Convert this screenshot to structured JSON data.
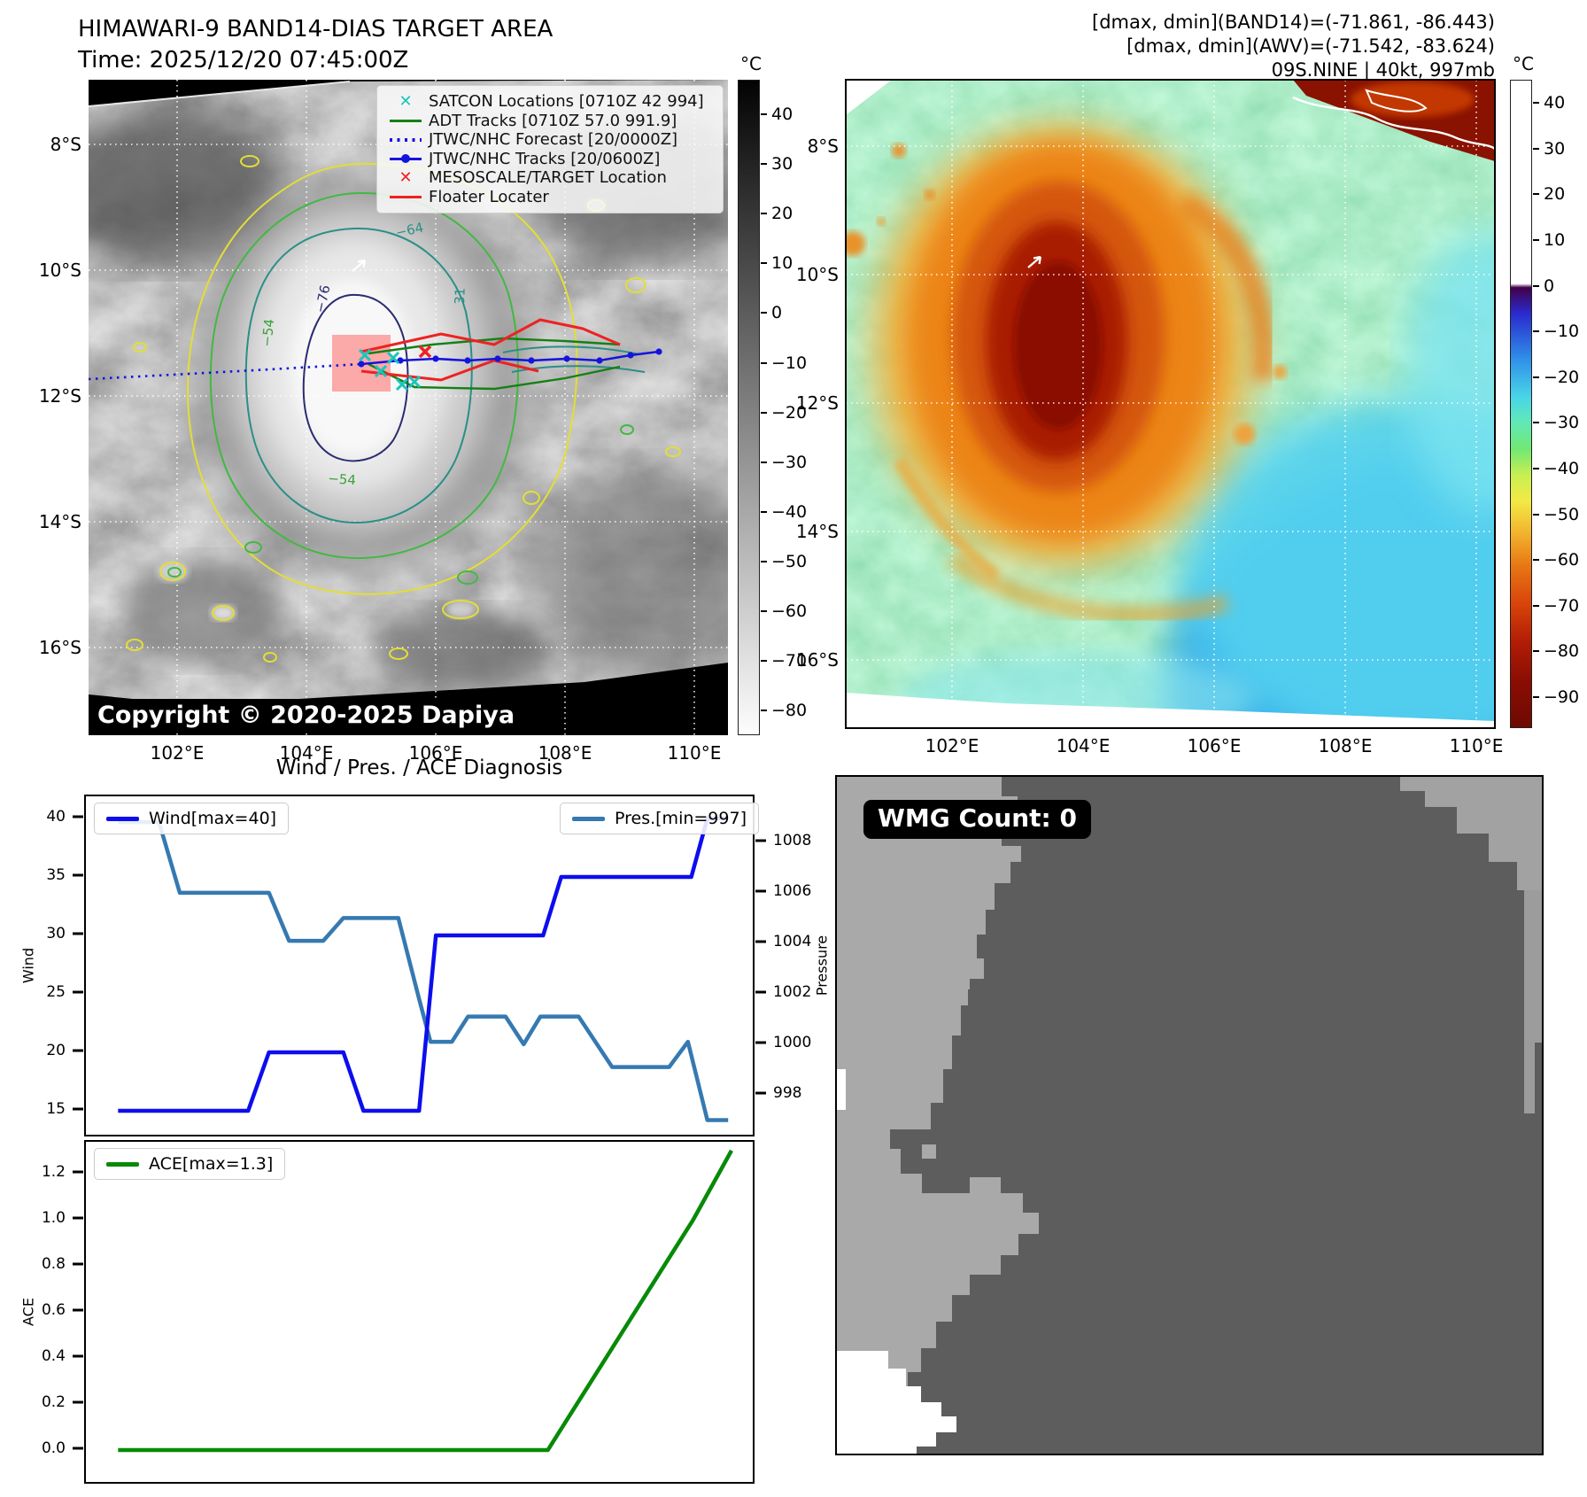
{
  "left_panel": {
    "title_line1": "HIMAWARI-9 BAND14-DIAS TARGET AREA",
    "title_line2": "Time: 2025/12/20 07:45:00Z",
    "copyright": "Copyright © 2020-2025 Dapiya",
    "legend": [
      {
        "label": "SATCON Locations [0710Z 42 994]",
        "symbol": "x-marker",
        "color": "#18c5bd"
      },
      {
        "label": "ADT Tracks [0710Z 57.0 991.9]",
        "symbol": "line",
        "color": "#158015"
      },
      {
        "label": "JTWC/NHC Forecast [20/0000Z]",
        "symbol": "dotted-line",
        "color": "#1414dd"
      },
      {
        "label": "JTWC/NHC Tracks [20/0600Z]",
        "symbol": "line-with-dot",
        "color": "#1414dd"
      },
      {
        "label": "MESOSCALE/TARGET Location",
        "symbol": "x-marker",
        "color": "#ee2222"
      },
      {
        "label": "Floater Locater",
        "symbol": "line",
        "color": "#ee2222"
      }
    ],
    "contour_labels": [
      "−76",
      "−64",
      "−54",
      "31",
      "−54"
    ],
    "xtick_labels": [
      "102°E",
      "104°E",
      "106°E",
      "108°E",
      "110°E"
    ],
    "ytick_labels": [
      "8°S",
      "10°S",
      "12°S",
      "14°S",
      "16°S"
    ],
    "colorbar": {
      "unit": "°C",
      "ticks": [
        40,
        30,
        20,
        10,
        0,
        -10,
        -20,
        -30,
        -40,
        -50,
        -60,
        -70,
        -80
      ],
      "tick_labels": [
        "40",
        "30",
        "20",
        "10",
        "0",
        "−10",
        "−20",
        "−30",
        "−40",
        "−50",
        "−60",
        "−70",
        "−80"
      ],
      "range": [
        -85,
        47
      ]
    }
  },
  "right_panel": {
    "header_line1": "[dmax, dmin](BAND14)=(-71.861, -86.443)",
    "header_line2": "[dmax, dmin](AWV)=(-71.542, -83.624)",
    "header_line3": "09S.NINE | 40kt, 997mb",
    "xtick_labels": [
      "102°E",
      "104°E",
      "106°E",
      "108°E",
      "110°E"
    ],
    "ytick_labels": [
      "8°S",
      "10°S",
      "12°S",
      "14°S",
      "16°S"
    ],
    "colorbar": {
      "unit": "°C",
      "ticks": [
        40,
        30,
        20,
        10,
        0,
        -10,
        -20,
        -30,
        -40,
        -50,
        -60,
        -70,
        -80,
        -90
      ],
      "tick_labels": [
        "40",
        "30",
        "20",
        "10",
        "0",
        "−10",
        "−20",
        "−30",
        "−40",
        "−50",
        "−60",
        "−70",
        "−80",
        "−90"
      ],
      "range": [
        -96.8,
        45.1
      ]
    }
  },
  "wmg_panel": {
    "label": "WMG Count: 0"
  },
  "charts_title": "Wind / Pres. / ACE Diagnosis",
  "chart_data": [
    {
      "type": "line",
      "title": "Wind / Pres. / ACE Diagnosis",
      "x": {
        "note": "normalized time, no x tick labels shown",
        "range": [
          0,
          1
        ]
      },
      "axes": {
        "wind": {
          "label": "Wind",
          "side": "left",
          "ticks": [
            40,
            35,
            30,
            25,
            20,
            15
          ],
          "tick_labels": [
            "40",
            "35",
            "30",
            "25",
            "20",
            "15"
          ],
          "range": [
            12.65,
            41.89
          ]
        },
        "pressure": {
          "label": "Pressure",
          "side": "right",
          "ticks": [
            1008,
            1006,
            1004,
            1002,
            1000,
            998
          ],
          "tick_labels": [
            "1008",
            "1006",
            "1004",
            "1002",
            "1000",
            "998"
          ],
          "range": [
            996.28,
            1009.82
          ]
        }
      },
      "series": [
        {
          "name": "Wind[max=40]",
          "color": "#0d0dee",
          "axis": "wind",
          "points": [
            [
              0.048,
              15
            ],
            [
              0.242,
              15
            ],
            [
              0.273,
              20
            ],
            [
              0.384,
              20
            ],
            [
              0.414,
              15
            ],
            [
              0.497,
              15
            ],
            [
              0.522,
              30
            ],
            [
              0.682,
              30
            ],
            [
              0.709,
              35
            ],
            [
              0.903,
              35
            ],
            [
              0.927,
              40
            ],
            [
              0.958,
              40
            ]
          ]
        },
        {
          "name": "Pres.[min=997]",
          "color": "#3579b1",
          "axis": "pressure",
          "points": [
            [
              0.048,
              1008.8
            ],
            [
              0.109,
              1008.8
            ],
            [
              0.14,
              1006
            ],
            [
              0.273,
              1006
            ],
            [
              0.303,
              1004.1
            ],
            [
              0.354,
              1004.1
            ],
            [
              0.384,
              1005
            ],
            [
              0.466,
              1005
            ],
            [
              0.497,
              1001.8
            ],
            [
              0.514,
              1000.1
            ],
            [
              0.546,
              1000.1
            ],
            [
              0.57,
              1001.1
            ],
            [
              0.626,
              1001.1
            ],
            [
              0.653,
              1000
            ],
            [
              0.678,
              1001.1
            ],
            [
              0.735,
              1001.1
            ],
            [
              0.785,
              999.1
            ],
            [
              0.87,
              999.1
            ],
            [
              0.898,
              1000.1
            ],
            [
              0.927,
              997
            ],
            [
              0.958,
              997
            ]
          ]
        }
      ]
    },
    {
      "type": "line",
      "axes": {
        "ace": {
          "label": "ACE",
          "side": "left",
          "ticks": [
            1.2,
            1.0,
            0.8,
            0.6,
            0.4,
            0.2,
            0.0
          ],
          "tick_labels": [
            "1.2",
            "1.0",
            "0.8",
            "0.6",
            "0.4",
            "0.2",
            "0.0"
          ],
          "range": [
            -0.154,
            1.338
          ]
        }
      },
      "series": [
        {
          "name": "ACE[max=1.3]",
          "color": "#078a07",
          "axis": "ace",
          "points": [
            [
              0.048,
              0
            ],
            [
              0.689,
              0
            ],
            [
              0.906,
              1.0
            ],
            [
              0.963,
              1.3
            ]
          ]
        }
      ]
    }
  ]
}
